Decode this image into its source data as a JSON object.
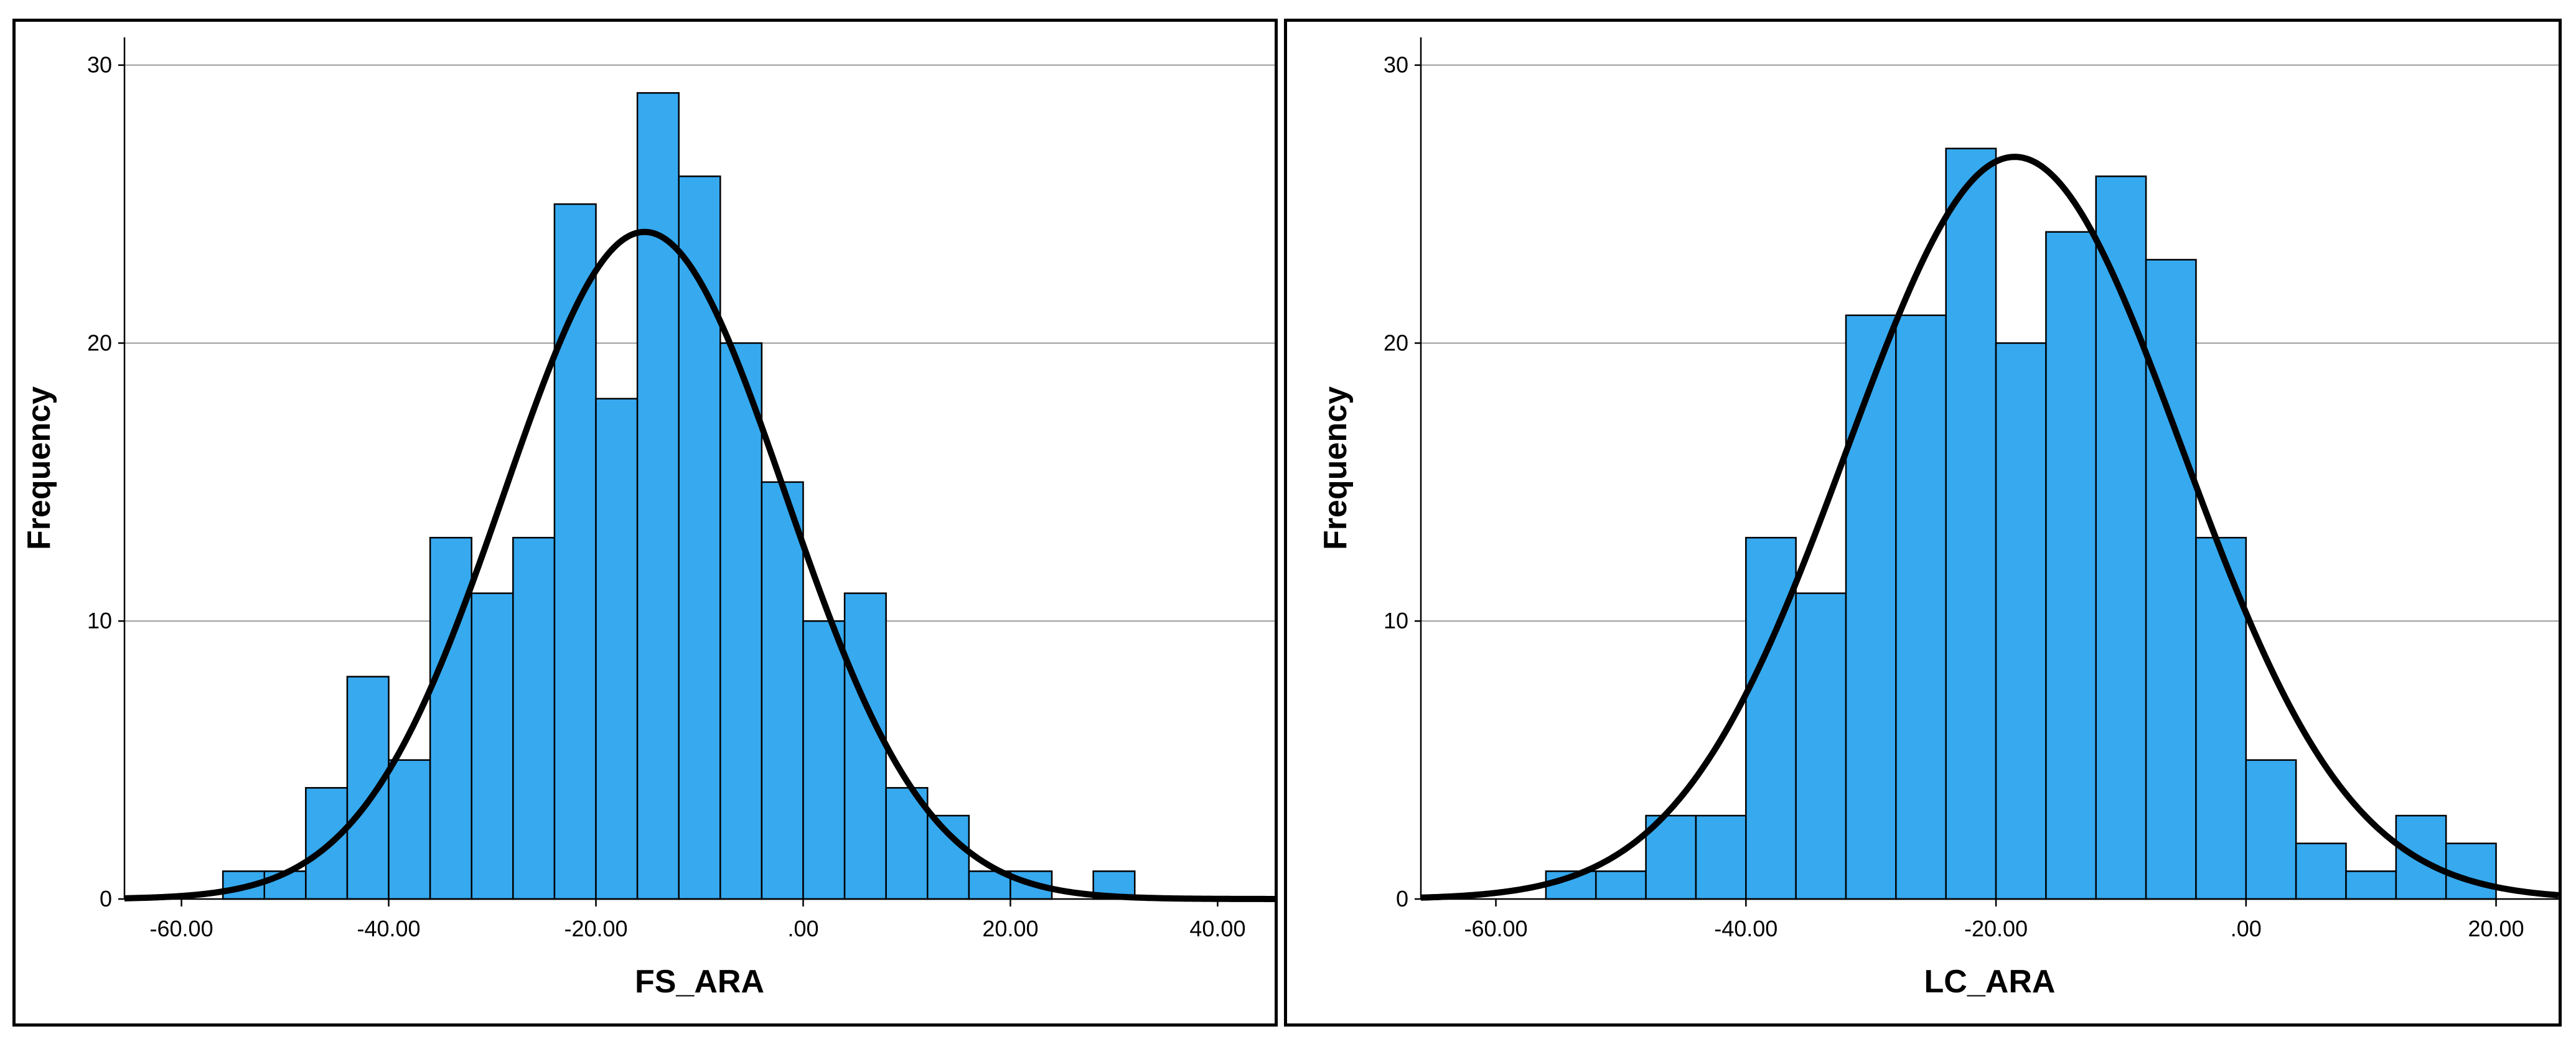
{
  "chart_data": [
    {
      "type": "bar",
      "subtype": "histogram-with-normal-curve",
      "title": "",
      "xlabel": "FS_ARA",
      "ylabel": "Frequency",
      "xlim": [
        -65.5,
        45.5
      ],
      "ylim": [
        0,
        31
      ],
      "bin_width": 4,
      "x_ticks": [
        -60,
        -40,
        -20,
        0,
        20,
        40
      ],
      "x_tick_labels": [
        "-60.00",
        "-40.00",
        "-20.00",
        ".00",
        "20.00",
        "40.00"
      ],
      "y_ticks": [
        0,
        10,
        20,
        30
      ],
      "y_tick_labels": [
        "0",
        "10",
        "20",
        "30"
      ],
      "grid": "horizontal",
      "bar_color": "#36A9EF",
      "curve_color": "#000000",
      "bins": [
        {
          "x_start": -56,
          "count": 1
        },
        {
          "x_start": -52,
          "count": 1
        },
        {
          "x_start": -48,
          "count": 4
        },
        {
          "x_start": -44,
          "count": 8
        },
        {
          "x_start": -40,
          "count": 5
        },
        {
          "x_start": -36,
          "count": 13
        },
        {
          "x_start": -32,
          "count": 11
        },
        {
          "x_start": -28,
          "count": 13
        },
        {
          "x_start": -24,
          "count": 25
        },
        {
          "x_start": -20,
          "count": 18
        },
        {
          "x_start": -16,
          "count": 29
        },
        {
          "x_start": -12,
          "count": 26
        },
        {
          "x_start": -8,
          "count": 20
        },
        {
          "x_start": -4,
          "count": 15
        },
        {
          "x_start": 0,
          "count": 10
        },
        {
          "x_start": 4,
          "count": 11
        },
        {
          "x_start": 8,
          "count": 4
        },
        {
          "x_start": 12,
          "count": 3
        },
        {
          "x_start": 16,
          "count": 1
        },
        {
          "x_start": 20,
          "count": 1
        },
        {
          "x_start": 28,
          "count": 1
        }
      ],
      "normal_curve": {
        "mean": -15.3,
        "sd": 13.6,
        "peak": 24
      }
    },
    {
      "type": "bar",
      "subtype": "histogram-with-normal-curve",
      "title": "",
      "xlabel": "LC_ARA",
      "ylabel": "Frequency",
      "xlim": [
        -66,
        25
      ],
      "ylim": [
        0,
        31
      ],
      "bin_width": 4,
      "x_ticks": [
        -60,
        -40,
        -20,
        0,
        20
      ],
      "x_tick_labels": [
        "-60.00",
        "-40.00",
        "-20.00",
        ".00",
        "20.00"
      ],
      "y_ticks": [
        0,
        10,
        20,
        30
      ],
      "y_tick_labels": [
        "0",
        "10",
        "20",
        "30"
      ],
      "grid": "horizontal",
      "bar_color": "#36A9EF",
      "curve_color": "#000000",
      "bins": [
        {
          "x_start": -56,
          "count": 1
        },
        {
          "x_start": -52,
          "count": 1
        },
        {
          "x_start": -48,
          "count": 3
        },
        {
          "x_start": -44,
          "count": 3
        },
        {
          "x_start": -40,
          "count": 13
        },
        {
          "x_start": -36,
          "count": 11
        },
        {
          "x_start": -32,
          "count": 21
        },
        {
          "x_start": -28,
          "count": 21
        },
        {
          "x_start": -24,
          "count": 27
        },
        {
          "x_start": -20,
          "count": 20
        },
        {
          "x_start": -16,
          "count": 24
        },
        {
          "x_start": -12,
          "count": 26
        },
        {
          "x_start": -8,
          "count": 23
        },
        {
          "x_start": -4,
          "count": 13
        },
        {
          "x_start": 0,
          "count": 5
        },
        {
          "x_start": 4,
          "count": 2
        },
        {
          "x_start": 8,
          "count": 1
        },
        {
          "x_start": 12,
          "count": 3
        },
        {
          "x_start": 16,
          "count": 2
        }
      ],
      "normal_curve": {
        "mean": -18.5,
        "sd": 13.4,
        "peak": 26.7
      }
    }
  ]
}
